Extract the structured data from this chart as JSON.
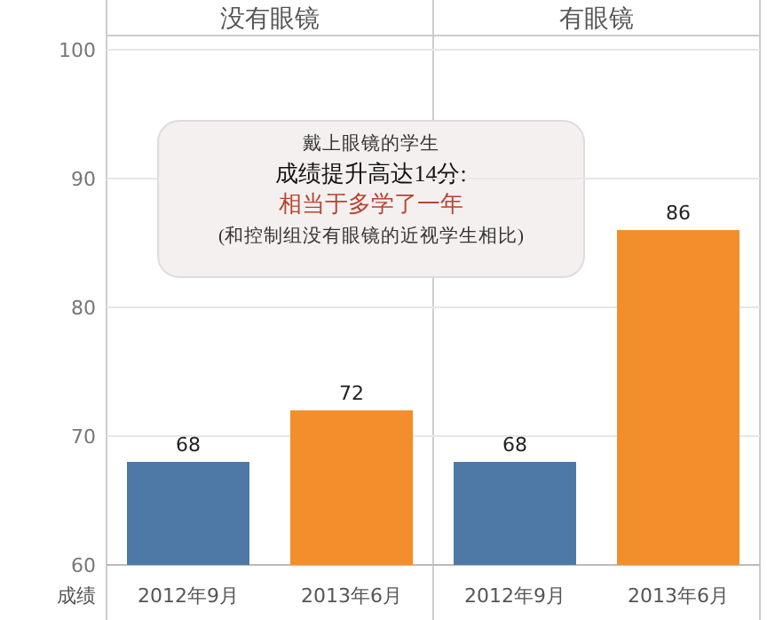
{
  "chart_data": [
    {
      "type": "bar",
      "title": "没有眼镜",
      "ylabel": "成绩",
      "categories": [
        "2012年9月",
        "2013年6月"
      ],
      "values": [
        68,
        72
      ],
      "colors": [
        "#4e79a7",
        "#f28e2b"
      ],
      "ylim": [
        60,
        100
      ],
      "yticks": [
        60,
        70,
        80,
        90,
        100
      ],
      "grid": "y",
      "data_labels": true,
      "annotations": [
        "戴上眼镜的学生",
        "成绩提升高达14分:",
        "相当于多学了一年",
        "(和控制组没有眼镜的近视学生相比)"
      ]
    },
    {
      "type": "bar",
      "title": "有眼镜",
      "categories": [
        "2012年9月",
        "2013年6月"
      ],
      "values": [
        68,
        86
      ],
      "colors": [
        "#4e79a7",
        "#f28e2b"
      ],
      "ylim": [
        60,
        100
      ],
      "yticks": [
        60,
        70,
        80,
        90,
        100
      ],
      "grid": "y",
      "data_labels": true,
      "tick_labels": "x"
    }
  ]
}
